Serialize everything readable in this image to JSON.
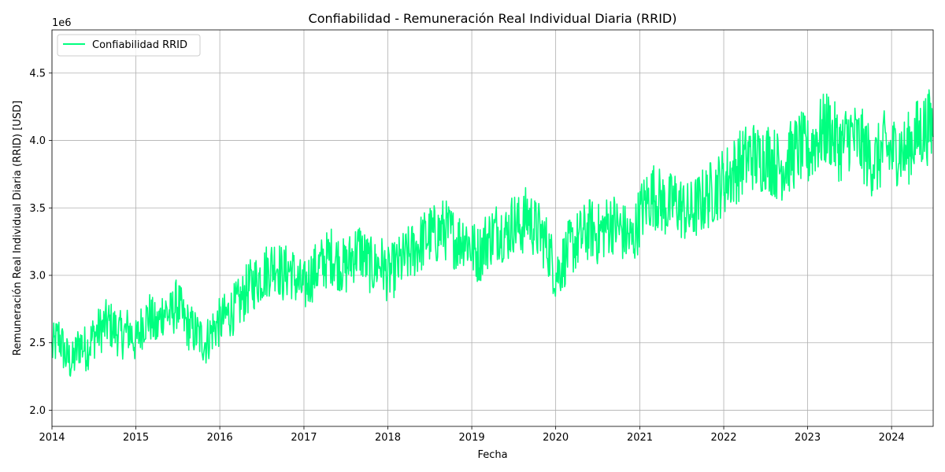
{
  "chart_data": {
    "type": "line",
    "title": "Confiabilidad - Remuneración Real Individual Diaria (RRID)",
    "xlabel": "Fecha",
    "ylabel": "Remuneración Real Individual Diaria (RRID) [USD]",
    "y_offset_label": "1e6",
    "y_scale_factor": 1000000,
    "xlim": [
      "2014-01-01",
      "2024-06-30"
    ],
    "ylim": [
      1880000,
      4820000
    ],
    "x_ticks": [
      "2014",
      "2015",
      "2016",
      "2017",
      "2018",
      "2019",
      "2020",
      "2021",
      "2022",
      "2023",
      "2024"
    ],
    "y_ticks": [
      2.0,
      2.5,
      3.0,
      3.5,
      4.0,
      4.5
    ],
    "grid": true,
    "legend_position": "top-left",
    "series": [
      {
        "name": "Confiabilidad RRID",
        "color": "#00ff7f",
        "x": [
          "2014-01",
          "2014-02",
          "2014-03",
          "2014-04",
          "2014-05",
          "2014-06",
          "2014-07",
          "2014-08",
          "2014-09",
          "2014-10",
          "2014-11",
          "2014-12",
          "2015-01",
          "2015-02",
          "2015-03",
          "2015-04",
          "2015-05",
          "2015-06",
          "2015-07",
          "2015-08",
          "2015-09",
          "2015-10",
          "2015-11",
          "2015-12",
          "2016-01",
          "2016-02",
          "2016-03",
          "2016-04",
          "2016-05",
          "2016-06",
          "2016-07",
          "2016-08",
          "2016-09",
          "2016-10",
          "2016-11",
          "2016-12",
          "2017-01",
          "2017-02",
          "2017-03",
          "2017-04",
          "2017-05",
          "2017-06",
          "2017-07",
          "2017-08",
          "2017-09",
          "2017-10",
          "2017-11",
          "2017-12",
          "2018-01",
          "2018-02",
          "2018-03",
          "2018-04",
          "2018-05",
          "2018-06",
          "2018-07",
          "2018-08",
          "2018-09",
          "2018-10",
          "2018-11",
          "2018-12",
          "2019-01",
          "2019-02",
          "2019-03",
          "2019-04",
          "2019-05",
          "2019-06",
          "2019-07",
          "2019-08",
          "2019-09",
          "2019-10",
          "2019-11",
          "2019-12",
          "2020-01",
          "2020-02",
          "2020-03",
          "2020-04",
          "2020-05",
          "2020-06",
          "2020-07",
          "2020-08",
          "2020-09",
          "2020-10",
          "2020-11",
          "2020-12",
          "2021-01",
          "2021-02",
          "2021-03",
          "2021-04",
          "2021-05",
          "2021-06",
          "2021-07",
          "2021-08",
          "2021-09",
          "2021-10",
          "2021-11",
          "2021-12",
          "2022-01",
          "2022-02",
          "2022-03",
          "2022-04",
          "2022-05",
          "2022-06",
          "2022-07",
          "2022-08",
          "2022-09",
          "2022-10",
          "2022-11",
          "2022-12",
          "2023-01",
          "2023-02",
          "2023-03",
          "2023-04",
          "2023-05",
          "2023-06",
          "2023-07",
          "2023-08",
          "2023-09",
          "2023-10",
          "2023-11",
          "2023-12",
          "2024-01",
          "2024-02",
          "2024-03",
          "2024-04",
          "2024-05",
          "2024-06"
        ],
        "y": [
          2450000,
          2550000,
          2400000,
          2350000,
          2500000,
          2450000,
          2550000,
          2600000,
          2650000,
          2600000,
          2550000,
          2600000,
          2500000,
          2650000,
          2700000,
          2600000,
          2750000,
          2700000,
          2800000,
          2650000,
          2600000,
          2550000,
          2500000,
          2600000,
          2650000,
          2700000,
          2750000,
          2800000,
          2900000,
          2950000,
          3000000,
          3050000,
          3100000,
          3000000,
          3050000,
          2950000,
          2900000,
          3000000,
          3050000,
          3100000,
          3150000,
          3100000,
          3050000,
          3150000,
          3200000,
          3100000,
          3050000,
          3100000,
          3000000,
          3050000,
          3100000,
          3150000,
          3200000,
          3250000,
          3300000,
          3300000,
          3350000,
          3300000,
          3250000,
          3300000,
          3200000,
          3150000,
          3250000,
          3300000,
          3350000,
          3300000,
          3400000,
          3350000,
          3450000,
          3350000,
          3300000,
          3200000,
          3000000,
          3100000,
          3200000,
          3250000,
          3300000,
          3350000,
          3300000,
          3350000,
          3400000,
          3350000,
          3300000,
          3250000,
          3450000,
          3550000,
          3600000,
          3550000,
          3500000,
          3550000,
          3500000,
          3450000,
          3500000,
          3550000,
          3600000,
          3650000,
          3700000,
          3750000,
          3800000,
          3850000,
          3900000,
          3850000,
          3900000,
          3850000,
          3800000,
          3850000,
          3900000,
          3950000,
          3900000,
          4000000,
          4050000,
          4100000,
          4000000,
          3950000,
          4050000,
          4000000,
          3950000,
          3850000,
          3850000,
          3950000,
          3900000,
          3950000,
          3900000,
          4000000,
          4050000,
          4100000
        ]
      }
    ]
  }
}
